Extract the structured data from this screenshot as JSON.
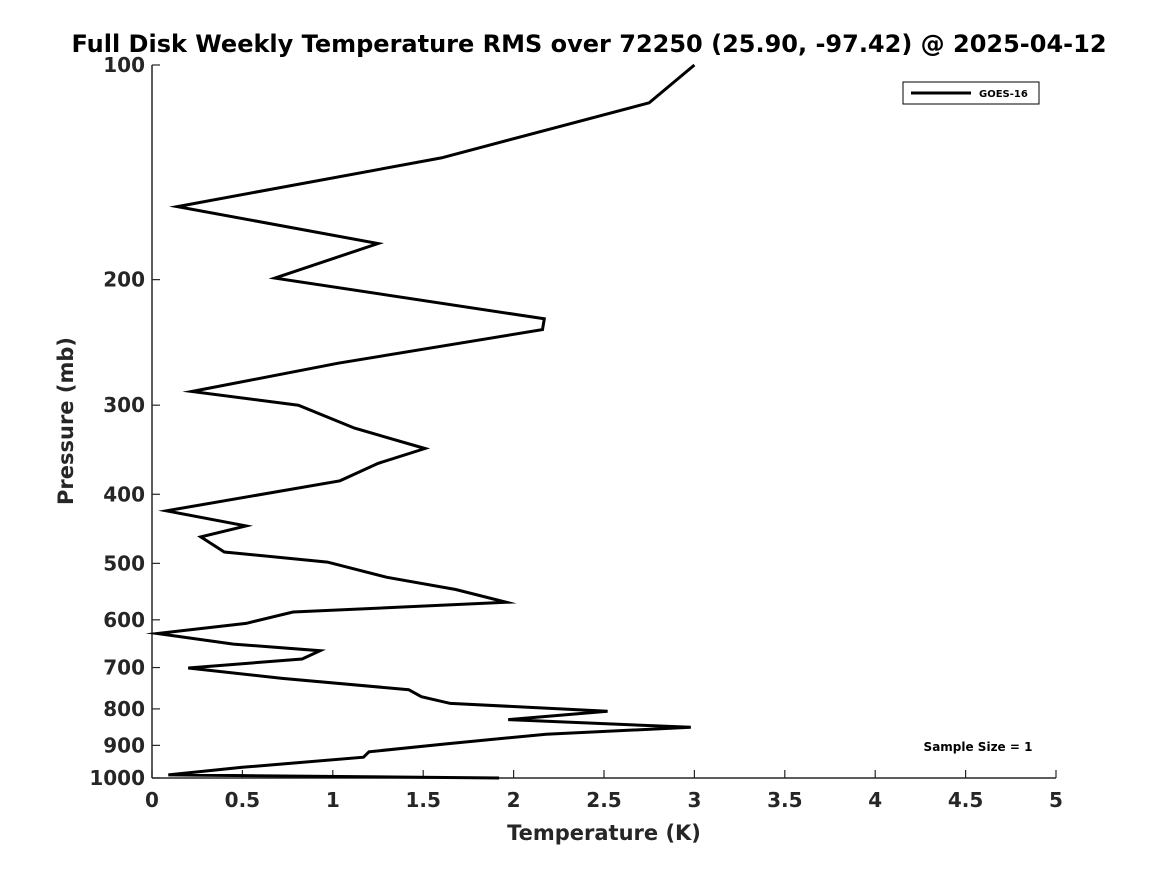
{
  "chart_data": {
    "type": "line",
    "title": "Full Disk Weekly Temperature RMS over 72250 (25.90, -97.42) @ 2025-04-12",
    "xlabel": "Temperature (K)",
    "ylabel": "Pressure (mb)",
    "xlim": [
      0,
      5
    ],
    "ylim": [
      1000,
      100
    ],
    "yscale": "log",
    "x_ticks": [
      0,
      0.5,
      1,
      1.5,
      2,
      2.5,
      3,
      3.5,
      4,
      4.5,
      5
    ],
    "x_tick_labels": [
      "0",
      "0.5",
      "1",
      "1.5",
      "2",
      "2.5",
      "3",
      "3.5",
      "4",
      "4.5",
      "5"
    ],
    "y_ticks": [
      100,
      200,
      300,
      400,
      500,
      600,
      700,
      800,
      900,
      1000
    ],
    "y_tick_labels": [
      "100",
      "200",
      "300",
      "400",
      "500",
      "600",
      "700",
      "800",
      "900",
      "1000"
    ],
    "legend": {
      "position": "top-right",
      "entries": [
        "GOES-16"
      ]
    },
    "annotation": "Sample Size = 1",
    "series": [
      {
        "name": "GOES-16",
        "color": "#000000",
        "x": [
          3.0,
          2.75,
          1.6,
          0.14,
          1.25,
          0.68,
          2.17,
          2.16,
          1.03,
          0.22,
          0.81,
          1.12,
          1.51,
          1.25,
          1.04,
          0.08,
          0.52,
          0.27,
          0.4,
          0.97,
          1.3,
          1.68,
          1.96,
          0.78,
          0.52,
          0.03,
          0.45,
          0.93,
          0.83,
          0.2,
          0.72,
          1.42,
          1.49,
          1.65,
          2.52,
          1.97,
          2.98,
          2.18,
          1.62,
          1.2,
          1.17,
          0.5,
          0.09,
          0.45,
          1.92
        ],
        "y": [
          100,
          113,
          135,
          158,
          178,
          199,
          227,
          235,
          262,
          287,
          300,
          323,
          345,
          362,
          383,
          422,
          443,
          459,
          482,
          498,
          523,
          544,
          567,
          585,
          607,
          627,
          649,
          663,
          681,
          701,
          725,
          752,
          769,
          786,
          806,
          828,
          849,
          868,
          896,
          919,
          935,
          966,
          990,
          992,
          1000
        ]
      }
    ]
  }
}
